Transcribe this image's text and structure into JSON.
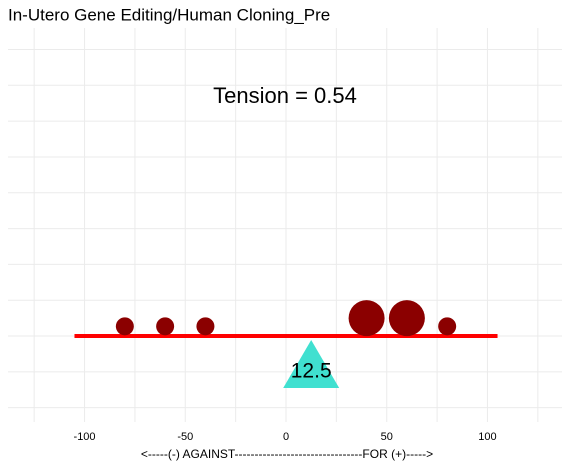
{
  "chart_data": {
    "type": "bubble",
    "title": "In-Utero Gene Editing/Human Cloning_Pre",
    "annotation": "Tension = 0.54",
    "xlabel": "<-----(-) AGAINST--------------------------------FOR (+)----->",
    "x": [
      -80,
      -60,
      -40,
      40,
      60,
      80
    ],
    "y": [
      0.27,
      0.27,
      0.27,
      0.5,
      0.5,
      0.27
    ],
    "sizes": [
      1,
      1,
      1,
      4,
      4,
      1
    ],
    "color": "#8b0000",
    "beam": {
      "x": [
        -105,
        105
      ],
      "y": 0,
      "color": "#ff0000"
    },
    "pivot": {
      "value": 12.5,
      "color": "#40e0d0"
    },
    "xlim": [
      -138,
      137
    ],
    "ylim": [
      -2.4,
      8.6
    ],
    "xticks": [
      -100,
      -50,
      0,
      50,
      100
    ],
    "xminor": [
      -125,
      -75,
      -25,
      25,
      75,
      125
    ],
    "yticks": [
      -2,
      -1,
      0,
      1,
      2,
      3,
      4,
      5,
      6,
      7,
      8
    ],
    "grid": true
  }
}
